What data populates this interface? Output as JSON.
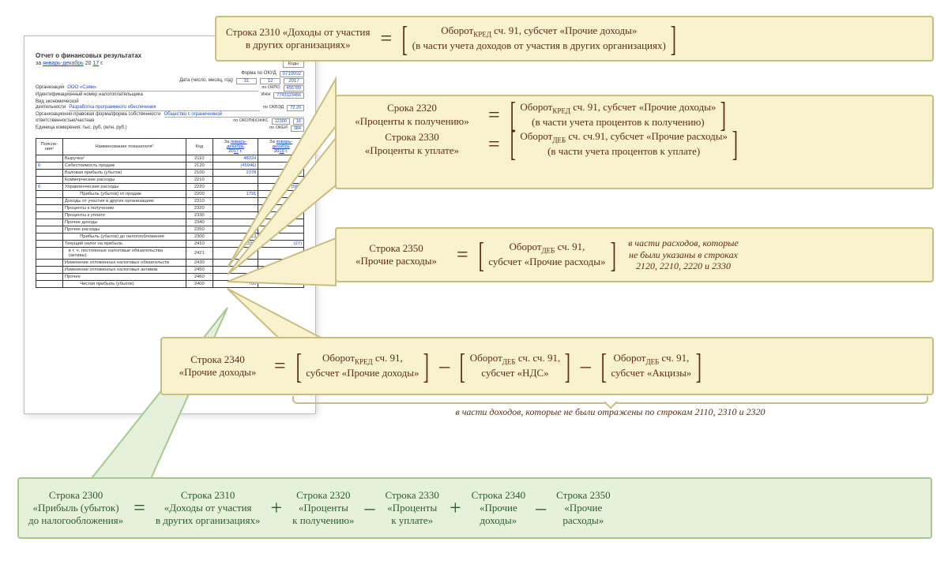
{
  "colors": {
    "callout_bg": "#f9f2cf",
    "callout_border": "#c9bd80",
    "callout_text": "#5d2e0f",
    "green_bg": "#e5f1da",
    "green_border": "#a7c98e",
    "green_text": "#2d5c2a",
    "doc_link": "#1a4ec7"
  },
  "doc": {
    "title": "Отчет о финансовых результатах",
    "period_prefix": "за ",
    "period_months": "январь-декабрь",
    "period_year_prefix": " 20 ",
    "period_year": "17",
    "period_suffix": "    г.",
    "codes_label": "Коды",
    "form_okud_lbl": "Форма по ОКУД",
    "form_okud": "0710002",
    "date_lbl": "Дата (число, месяц, год)",
    "date_d": "31",
    "date_m": "12",
    "date_y": "2017",
    "org_lbl": "Организация",
    "org_val": "ООО «Сэям»",
    "okpo_lbl": "по ОКПО",
    "okpo": "456789",
    "inn_lbl": "Идентификационный номер налогоплательщика",
    "inn_code_lbl": "ИНН",
    "inn": "7743123456",
    "activity_lbl": "Вид экономической",
    "activity_lbl2": "деятельности",
    "activity_val": "Разработка программного обеспечения",
    "okved_lbl": "по ОКВЭД",
    "okved": "72.20",
    "form_lbl": "Организационно-правовая форма/форма собственности",
    "form_val": "Общество с ограниченной",
    "form_lbl2": "ответственностью/частная",
    "okopf_lbl": "по ОКОПФ/ОКФС",
    "okopf": "12300",
    "okfs": "16",
    "unit_lbl": "Единица измерения: тыс. руб.  (млн. руб.)",
    "okei_lbl": "по ОКЕИ",
    "okei": "384",
    "table": {
      "hdr_expl": "Поясне-\nния¹",
      "hdr_name": "Наименование показателя²",
      "hdr_code": "Код",
      "hdr_per1_pre": "За ",
      "hdr_per1": "январь-\nдекабрь",
      "hdr_per1_yr": "17",
      "hdr_per2_pre": "За ",
      "hdr_per2": "январь-\nдекабрь",
      "hdr_per2_yr": "16",
      "rows": [
        {
          "e": "",
          "n": "Выручка³",
          "c": "2110",
          "v1": "48324",
          "v2": ""
        },
        {
          "e": "6",
          "n": "Себестоимость продаж",
          "c": "2120",
          "v1": "(45946)",
          "v2": ""
        },
        {
          "e": "",
          "n": "Валовая прибыль (убыток)",
          "c": "2100",
          "v1": "2378",
          "v2": "698"
        },
        {
          "e": "",
          "n": "Коммерческие расходы",
          "c": "2210",
          "v1": "",
          "v2": ""
        },
        {
          "e": "6",
          "n": "Управленческие расходы",
          "c": "2220",
          "v1": "",
          "v2": "(568)"
        },
        {
          "e": "",
          "n": "            Прибыль (убыток) от продаж",
          "c": "2200",
          "v1": "1791",
          "v2": "130"
        },
        {
          "e": "",
          "n": "Доходы от участия в других организациях",
          "c": "2310",
          "v1": "",
          "v2": ""
        },
        {
          "e": "",
          "n": "Проценты к получению",
          "c": "2320",
          "v1": "",
          "v2": ""
        },
        {
          "e": "",
          "n": "Проценты к уплате",
          "c": "2330",
          "v1": "",
          "v2": ""
        },
        {
          "e": "",
          "n": "Прочие доходы",
          "c": "2340",
          "v1": "",
          "v2": ""
        },
        {
          "e": "",
          "n": "Прочие расходы",
          "c": "2350",
          "v1": "",
          "v2": ""
        },
        {
          "e": "",
          "n": "            Прибыль (убыток) до налогообложения",
          "c": "2300",
          "v1": "1213",
          "v2": ""
        },
        {
          "e": "",
          "n": "Текущий налог на прибыль",
          "c": "2410",
          "v1": "(336)",
          "v2": "(27)"
        },
        {
          "e": "",
          "n": "   в т. ч. постоянные налоговые обязательства\n   (активы)",
          "c": "2421",
          "v1": "",
          "v2": ""
        },
        {
          "e": "",
          "n": "Изменение отложенных налоговых обязательств",
          "c": "2430",
          "v1": "",
          "v2": ""
        },
        {
          "e": "",
          "n": "Изменение отложенных налоговых активов",
          "c": "2450",
          "v1": "",
          "v2": ""
        },
        {
          "e": "",
          "n": "Прочее",
          "c": "2460",
          "v1": "(91)",
          "v2": ""
        },
        {
          "e": "",
          "n": "            Чистая прибыль (убыток)",
          "c": "2400",
          "v1": "786",
          "v2": "86"
        }
      ]
    }
  },
  "c2310": {
    "lhs1": "Строка 2310 «Доходы от участия",
    "lhs2": "в других организациях»",
    "rhs1": "Оборот",
    "rhs_sub": "КРЕД",
    "rhs2": " сч. 91, субсчет «Прочие доходы»",
    "rhs3": "(в части учета доходов от участия в других организациях)"
  },
  "c2320": {
    "lhs1": "Срока 2320",
    "lhs2": "«Проценты к получению»",
    "rhs1": "Оборот",
    "rhs_sub": "КРЕД",
    "rhs2": " сч. 91, субсчет «Прочие доходы»",
    "rhs3": "(в части учета процентов к получению)"
  },
  "c2330": {
    "lhs1": "Строка 2330",
    "lhs2": "«Проценты к уплате»",
    "rhs1": "Оборот",
    "rhs_sub": "ДЕБ",
    "rhs2": " сч. сч.91, субсчет «Прочие расходы»",
    "rhs3": "(в части учета процентов к уплате)"
  },
  "c2350": {
    "lhs1": "Строка 2350",
    "lhs2": "«Прочие расходы»",
    "rhs1": "Оборот",
    "rhs_sub": "ДЕБ",
    "rhs2": " сч. 91,",
    "rhs3": "субсчет «Прочие расходы»",
    "note1": "в части расходов, которые",
    "note2": "не были указаны в строках",
    "note3": "2120, 2210, 2220 и 2330"
  },
  "c2340": {
    "lhs1": "Строка 2340",
    "lhs2": "«Прочие доходы»",
    "t1a": "Оборот",
    "t1sub": "КРЕД",
    "t1b": " сч. 91,",
    "t1c": "субсчет «Прочие доходы»",
    "t2a": "Оборот",
    "t2sub": "ДЕБ",
    "t2b": " сч. сч. 91,",
    "t2c": "субсчет «НДС»",
    "t3a": "Оборот",
    "t3sub": "ДЕБ",
    "t3b": " сч. 91,",
    "t3c": "субсчет «Акцизы»",
    "under": "в части доходов, которые не были отражены по строкам 2110, 2310 и 2320"
  },
  "c2300": {
    "t0a": "Строка 2300",
    "t0b": "«Прибыль (убыток)",
    "t0c": "до налогообложения»",
    "t1a": "Строка 2310",
    "t1b": "«Доходы от участия",
    "t1c": "в других организациях»",
    "t2a": "Строка 2320",
    "t2b": "«Проценты",
    "t2c": "к получению»",
    "t3a": "Строка 2330",
    "t3b": "«Проценты",
    "t3c": "к уплате»",
    "t4a": "Строка 2340",
    "t4b": "«Прочие",
    "t4c": "доходы»",
    "t5a": "Строка 2350",
    "t5b": "«Прочие",
    "t5c": "расходы»"
  }
}
